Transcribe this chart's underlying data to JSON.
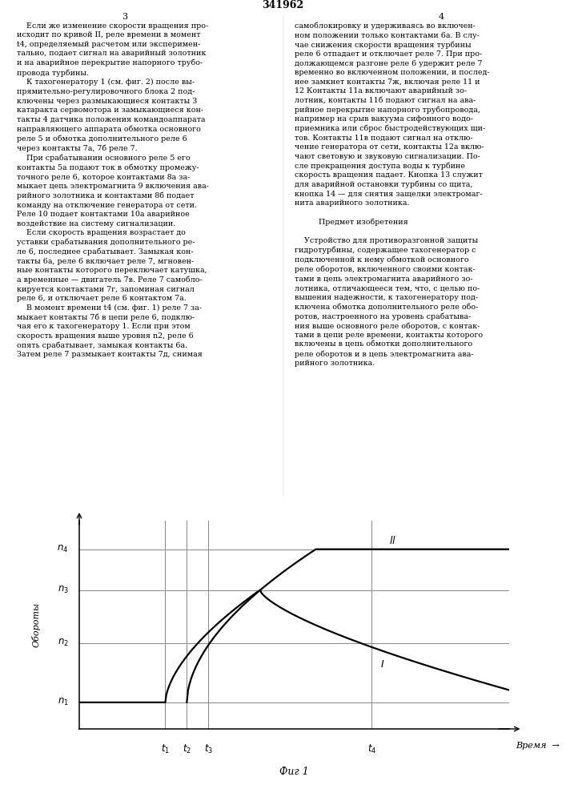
{
  "title": "Фиг 1",
  "ylabel": "Обороты",
  "xlabel": "Время",
  "n1": 0.13,
  "n2": 0.42,
  "n3": 0.68,
  "n4": 0.88,
  "t1": 0.2,
  "t2": 0.25,
  "t3": 0.3,
  "t4": 0.68,
  "curve_color": "#000000",
  "bg_color": "#ffffff",
  "line_color": "#666666",
  "fig_width": 7.07,
  "fig_height": 10.0,
  "page_num_left": "3",
  "page_num_right": "4",
  "patent_num": "341962",
  "text_left": "    Если же изменение скорости вращения про-\nисходит по кривой II, реле времени в момент\nt4, определяемый расчетом или эксперимен-\nтально, подает сигнал на аварийный золотник\nи на аварийное перекрытие напорного трубо-\nпровода турбины.\n    К тахогенератору 1 (см. фиг. 2) после вы-\nпрямительно-регулировочного блока 2 под-\nключены через размыкающиеся контакты 3\nкатаракта сервомотора и замыкающиеся кон-\nтакты 4 датчика положения командоаппарата\nнаправляющего аппарата обмотка основного\nреле 5 и обмотка дополнительного реле 6\nчерез контакты 7а, 7б реле 7.\n    При срабатывании основного реле 5 его\nконтакты 5а подают ток в обмотку промежу-\nточного реле 6, которое контактами 8а за-\nмыкает цепь электромагнита 9 включения ава-\nрийного золотника и контактами 8б подает\nкоманду на отключение генератора от сети.\nРеле 10 подает контактами 10а аварийное\nвоздействие на систему сигнализации.\n    Если скорость вращения возрастает до\nуставки срабатывания дополнительного ре-\nле 6, последнее срабатывает. Замыкая кон-\nтакты 6а, реле 6 включает реле 7, мгновен-\nные контакты которого переключает катушка,\nа временные — двигатель 7в. Реле 7 самобло-\nкируется контактами 7г, запоминая сигнал\nреле 6, и отключает реле 6 контактом 7а.\n    В момент времени t4 (см. фиг. 1) реле 7 за-\nмыкает контакты 7б в цепи реле 6, подклю-\nчая его к тахогенератору 1. Если при этом\nскорость вращения выше уровня n2, реле 6\nопять срабатывает, замыкая контакты 6а.\nЗатем реле 7 размыкает контакты 7д, снимая",
  "text_right": "самоблокировку и удерживаясь во включен-\nном положении только контактами 6а. В слу-\nчае снижения скорости вращения турбины\nреле 6 отпадает и отключает реле 7. При про-\nдолжающемся разгоне реле 6 удержит реле 7\nвременно во включенном положении, и послед-\nнее замкнет контакты 7ж, включая реле 11 и\n12 Контакты 11а включают аварийный зо-\nлотник, контакты 11б подают сигнал на ава-\nрийное перекрытие напорного трубопровода,\nнапример на срыв вакуума сифонного водо-\nприемника или сброс быстродействующих щи-\nтов. Контакты 11в подают сигнал на отклю-\nчение генератора от сети, контакты 12а вклю-\nчают световую и звуковую сигнализации. По-\nсле прекращения доступа воды к турбине\nскорость вращения падает. Кнопка 13 служит\nдля аварийной остановки турбины со щита,\nкнопка 14 — для снятия защелки электромаг-\nнита аварийного золотника.\n\n          Предмет изобретения\n\n    Устройство для противоразгонной защиты\nгидротурбины, содержащее тахогенератор с\nподключенной к нему обмоткой основного\nреле оборотов, включенного своими контак-\nтами в цепь электромагнита аварийного зо-\nлотника, отличающееся тем, что, с целью по-\nвышения надежности, к тахогенератору под-\nключена обмотка дополнительного реле обо-\nротов, настроенного на уровень срабатыва-\nния выше основного реле оборотов, с контак-\nтами в цепи реле времени, контакты которого\nвключены в цепь обмотки дополнительного\nреле оборотов и в цепь электромагнита ава-\nрийного золотника."
}
